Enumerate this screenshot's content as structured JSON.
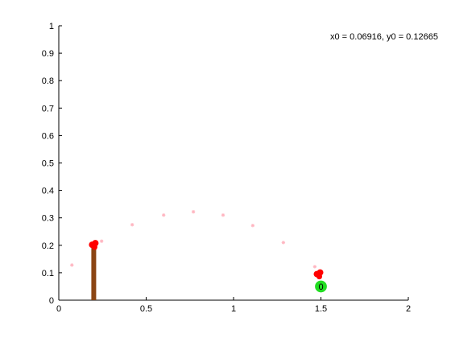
{
  "chart_data": {
    "type": "scatter",
    "title": "",
    "xlabel": "",
    "ylabel": "",
    "xlim": [
      0,
      2
    ],
    "ylim": [
      0,
      1
    ],
    "grid": false,
    "legend": "none",
    "x_ticks": [
      "0",
      "0.5",
      "1",
      "1.5",
      "2"
    ],
    "y_ticks": [
      "0",
      "0.1",
      "0.2",
      "0.3",
      "0.4",
      "0.5",
      "0.6",
      "0.7",
      "0.8",
      "0.9",
      "1"
    ],
    "x_tick_values": [
      0,
      0.5,
      1,
      1.5,
      2
    ],
    "y_tick_values": [
      0,
      0.1,
      0.2,
      0.3,
      0.4,
      0.5,
      0.6,
      0.7,
      0.8,
      0.9,
      1
    ],
    "annotation": "x0 = 0.06916, y0 = 0.12665",
    "trajectory": {
      "color": "#ffb6c1",
      "x": [
        0.075,
        0.245,
        0.42,
        0.6,
        0.77,
        0.94,
        1.11,
        1.285,
        1.465
      ],
      "y": [
        0.128,
        0.215,
        0.275,
        0.31,
        0.322,
        0.31,
        0.272,
        0.21,
        0.122
      ]
    },
    "pole": {
      "color": "#8b4513",
      "x": 0.2,
      "y_top": 0.2,
      "y_bottom": 0
    },
    "launcher": {
      "color": "#ff0000",
      "x": 0.2,
      "y": 0.202
    },
    "target": {
      "color": "#22dd22",
      "x": 1.5,
      "y": 0.05,
      "radius": 0.04,
      "label": "0"
    },
    "projectile": {
      "color": "#ff0000",
      "x": 1.5,
      "y": 0.095
    }
  }
}
